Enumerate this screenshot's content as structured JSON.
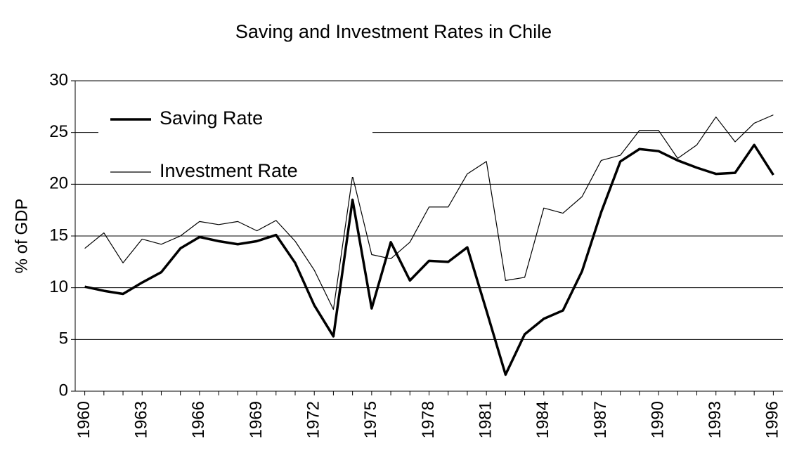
{
  "chart_data": {
    "type": "line",
    "title": "Saving and Investment Rates in Chile",
    "ylabel": "% of GDP",
    "x": [
      1960,
      1961,
      1962,
      1963,
      1964,
      1965,
      1966,
      1967,
      1968,
      1969,
      1970,
      1971,
      1972,
      1973,
      1974,
      1975,
      1976,
      1977,
      1978,
      1979,
      1980,
      1981,
      1982,
      1983,
      1984,
      1985,
      1986,
      1987,
      1988,
      1989,
      1990,
      1991,
      1992,
      1993,
      1994,
      1995,
      1996
    ],
    "series": [
      {
        "name": "Saving Rate",
        "color": "#000000",
        "values": [
          10.1,
          9.7,
          9.4,
          10.5,
          11.5,
          13.8,
          14.9,
          14.5,
          14.2,
          14.5,
          15.1,
          12.4,
          8.3,
          5.3,
          18.5,
          8.0,
          14.4,
          10.7,
          12.6,
          12.5,
          13.9,
          7.8,
          1.6,
          5.5,
          7.0,
          7.8,
          11.6,
          17.3,
          22.2,
          23.4,
          23.2,
          22.3,
          21.6,
          21.0,
          21.1,
          23.8,
          20.9
        ]
      },
      {
        "name": "Investment Rate",
        "color": "#000000",
        "values": [
          13.8,
          15.3,
          12.4,
          14.7,
          14.2,
          15.0,
          16.4,
          16.1,
          16.4,
          15.5,
          16.5,
          14.5,
          11.7,
          7.9,
          20.8,
          13.2,
          12.8,
          14.4,
          17.8,
          17.8,
          21.0,
          22.2,
          10.7,
          11.0,
          17.7,
          17.2,
          18.8,
          22.3,
          22.8,
          25.2,
          25.2,
          22.5,
          23.8,
          26.5,
          24.1,
          25.9,
          26.7
        ]
      }
    ],
    "xlim": [
      1959.5,
      1996.5
    ],
    "xticks": [
      1960,
      1963,
      1966,
      1969,
      1972,
      1975,
      1978,
      1981,
      1984,
      1987,
      1990,
      1993,
      1996
    ],
    "ylim": [
      0,
      30
    ],
    "yticks": [
      0,
      5,
      10,
      15,
      20,
      25,
      30
    ],
    "grid": true,
    "legend": "upper left"
  }
}
